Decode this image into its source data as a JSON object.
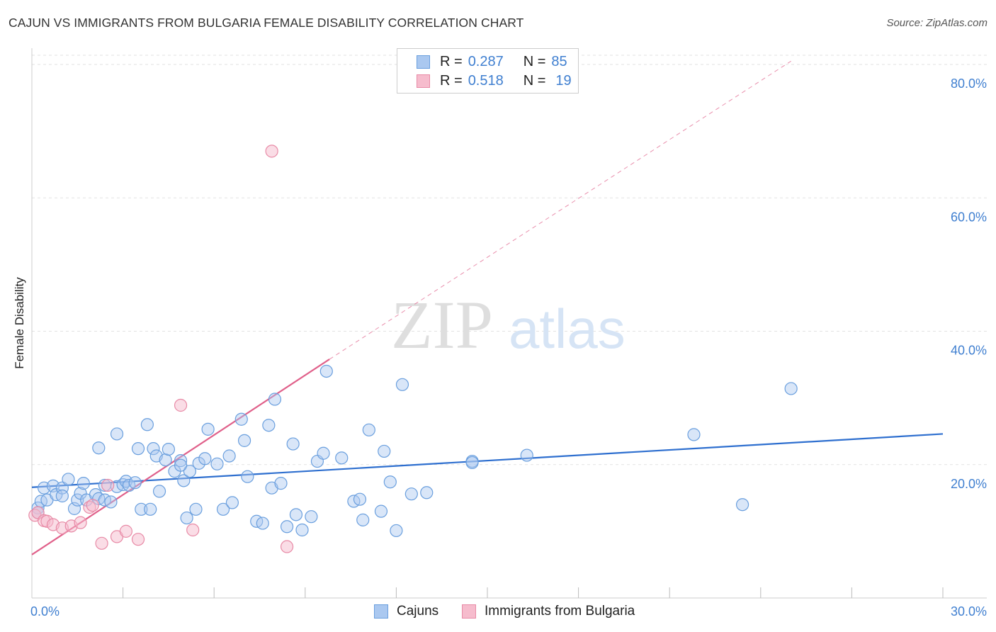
{
  "header": {
    "title": "CAJUN VS IMMIGRANTS FROM BULGARIA FEMALE DISABILITY CORRELATION CHART",
    "source": "Source: ZipAtlas.com"
  },
  "legend": {
    "series1": {
      "r_label": "R =",
      "r_value": "0.287",
      "n_label": "N =",
      "n_value": "85"
    },
    "series2": {
      "r_label": "R =",
      "r_value": "0.518",
      "n_label": "N =",
      "n_value": "19"
    }
  },
  "bottom_legend": {
    "series1": "Cajuns",
    "series2": "Immigrants from Bulgaria"
  },
  "watermark": {
    "part1": "ZIP",
    "part2": "atlas"
  },
  "colors": {
    "cajun_fill": "#aac8f0",
    "cajun_stroke": "#6a9fde",
    "cajun_line": "#2e6fcf",
    "bulgaria_fill": "#f6bccd",
    "bulgaria_stroke": "#e88aa6",
    "bulgaria_line": "#e0608a",
    "tick_label": "#3f7fd0"
  },
  "chart_data": {
    "type": "scatter",
    "title": "CAJUN VS IMMIGRANTS FROM BULGARIA FEMALE DISABILITY CORRELATION CHART",
    "xlabel": "",
    "ylabel": "Female Disability",
    "xlim": [
      0,
      30
    ],
    "ylim": [
      0,
      80
    ],
    "x_tick_labels": [
      "0.0%",
      "30.0%"
    ],
    "y_ticks": [
      20,
      40,
      60,
      80
    ],
    "y_tick_labels": [
      "20.0%",
      "40.0%",
      "60.0%",
      "80.0%"
    ],
    "grid": true,
    "series": [
      {
        "name": "Cajuns",
        "r": 0.287,
        "n": 85,
        "trend": {
          "x": [
            0,
            30
          ],
          "y": [
            16.6,
            24.6
          ],
          "style": "solid"
        },
        "points": [
          [
            0.2,
            13.5
          ],
          [
            0.3,
            14.5
          ],
          [
            0.4,
            16.5
          ],
          [
            0.5,
            14.7
          ],
          [
            0.7,
            16.8
          ],
          [
            0.8,
            15.5
          ],
          [
            1.0,
            16.5
          ],
          [
            1.0,
            15.3
          ],
          [
            1.2,
            17.8
          ],
          [
            1.4,
            13.4
          ],
          [
            1.5,
            14.7
          ],
          [
            1.6,
            15.7
          ],
          [
            1.7,
            17.2
          ],
          [
            1.8,
            14.7
          ],
          [
            2.1,
            15.5
          ],
          [
            2.2,
            14.9
          ],
          [
            2.2,
            22.5
          ],
          [
            2.4,
            14.7
          ],
          [
            2.4,
            16.9
          ],
          [
            2.6,
            14.4
          ],
          [
            2.8,
            16.7
          ],
          [
            2.8,
            24.6
          ],
          [
            3.0,
            17.0
          ],
          [
            3.1,
            17.5
          ],
          [
            3.2,
            16.9
          ],
          [
            3.4,
            17.3
          ],
          [
            3.5,
            22.4
          ],
          [
            3.6,
            13.3
          ],
          [
            3.8,
            26.0
          ],
          [
            3.9,
            13.3
          ],
          [
            4.0,
            22.4
          ],
          [
            4.1,
            21.3
          ],
          [
            4.2,
            16.0
          ],
          [
            4.4,
            20.7
          ],
          [
            4.5,
            22.3
          ],
          [
            4.7,
            19.0
          ],
          [
            4.9,
            20.6
          ],
          [
            5.0,
            17.6
          ],
          [
            5.1,
            12.0
          ],
          [
            5.2,
            19.0
          ],
          [
            5.4,
            13.3
          ],
          [
            5.5,
            20.2
          ],
          [
            5.7,
            20.9
          ],
          [
            5.8,
            25.3
          ],
          [
            6.1,
            20.1
          ],
          [
            6.3,
            13.3
          ],
          [
            6.5,
            21.3
          ],
          [
            6.6,
            14.3
          ],
          [
            6.9,
            26.8
          ],
          [
            7.0,
            23.6
          ],
          [
            7.1,
            18.2
          ],
          [
            7.4,
            11.5
          ],
          [
            7.6,
            11.2
          ],
          [
            7.8,
            25.9
          ],
          [
            7.9,
            16.5
          ],
          [
            8.0,
            29.8
          ],
          [
            8.2,
            17.2
          ],
          [
            8.4,
            10.7
          ],
          [
            8.6,
            23.1
          ],
          [
            8.7,
            12.5
          ],
          [
            8.9,
            10.2
          ],
          [
            9.2,
            12.2
          ],
          [
            9.4,
            20.5
          ],
          [
            9.6,
            21.7
          ],
          [
            9.7,
            34.0
          ],
          [
            10.2,
            21.0
          ],
          [
            10.6,
            14.5
          ],
          [
            10.8,
            14.8
          ],
          [
            10.9,
            11.7
          ],
          [
            11.1,
            25.2
          ],
          [
            11.5,
            13.0
          ],
          [
            11.6,
            22.0
          ],
          [
            11.8,
            17.4
          ],
          [
            12.0,
            10.1
          ],
          [
            12.2,
            32.0
          ],
          [
            12.5,
            15.6
          ],
          [
            13.0,
            15.8
          ],
          [
            14.5,
            20.5
          ],
          [
            14.5,
            20.3
          ],
          [
            16.3,
            21.4
          ],
          [
            21.8,
            24.5
          ],
          [
            23.4,
            14.0
          ],
          [
            25.0,
            31.4
          ],
          [
            0.2,
            12.8
          ],
          [
            4.9,
            19.9
          ]
        ]
      },
      {
        "name": "Immigrants from Bulgaria",
        "r": 0.518,
        "n": 19,
        "trend": {
          "x": [
            0,
            9.8
          ],
          "y": [
            6.5,
            35.8
          ],
          "style": "solid",
          "extended_x": [
            9.8,
            25.0
          ],
          "extended_y": [
            35.8,
            80.5
          ],
          "extended_style": "dashed"
        },
        "points": [
          [
            0.1,
            12.4
          ],
          [
            0.2,
            12.8
          ],
          [
            0.4,
            11.6
          ],
          [
            0.5,
            11.5
          ],
          [
            0.7,
            11.0
          ],
          [
            1.0,
            10.5
          ],
          [
            1.3,
            10.8
          ],
          [
            1.6,
            11.3
          ],
          [
            1.9,
            13.6
          ],
          [
            2.3,
            8.2
          ],
          [
            2.5,
            16.9
          ],
          [
            2.8,
            9.2
          ],
          [
            3.1,
            10.0
          ],
          [
            3.5,
            8.8
          ],
          [
            4.9,
            28.9
          ],
          [
            5.3,
            10.2
          ],
          [
            7.9,
            67.0
          ],
          [
            8.4,
            7.7
          ],
          [
            2.0,
            13.9
          ]
        ]
      }
    ]
  }
}
